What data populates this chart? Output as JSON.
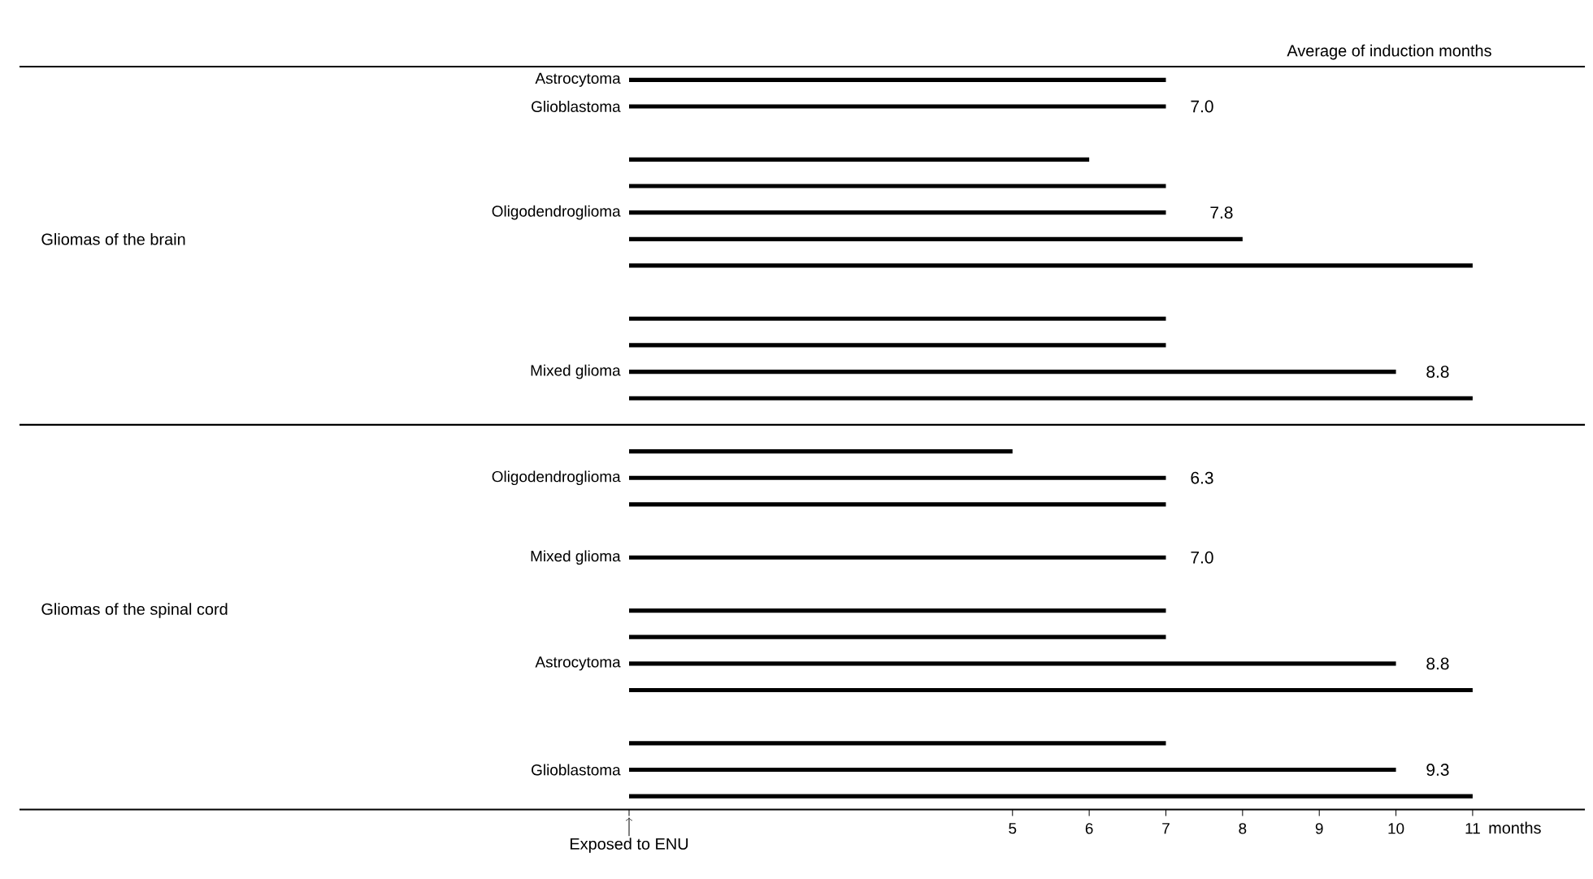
{
  "chart_data": {
    "type": "bar",
    "orientation": "horizontal",
    "color": "#000000",
    "xlabel": "months",
    "categories": [
      "Astrocytoma",
      "Glioblastoma",
      null,
      null,
      null,
      "Oligodendroglioma",
      null,
      null,
      null,
      null,
      null,
      "Mixed glioma",
      null,
      null,
      null,
      "Oligodendroglioma",
      null,
      null,
      "Mixed glioma",
      null,
      null,
      null,
      "Astrocytoma",
      null,
      null,
      null,
      "Glioblastoma",
      null
    ],
    "values": [
      7,
      7,
      null,
      6,
      7,
      7,
      8,
      11,
      null,
      7,
      7,
      10,
      11,
      null,
      5,
      7,
      7,
      null,
      7,
      null,
      7,
      7,
      10,
      11,
      null,
      7,
      10,
      11
    ],
    "xlim": [
      0,
      12.4
    ],
    "xticks": [
      {
        "value": 0,
        "label": null
      },
      5,
      6,
      7,
      8,
      9,
      10,
      11
    ],
    "annotations": [
      "Average of induction months",
      "Gliomas of the brain",
      "Gliomas of the spinal cord",
      "Exposed to ENU",
      "7.0",
      "7.8",
      "8.8",
      "6.3",
      "7.0",
      "8.8",
      "9.3"
    ]
  }
}
